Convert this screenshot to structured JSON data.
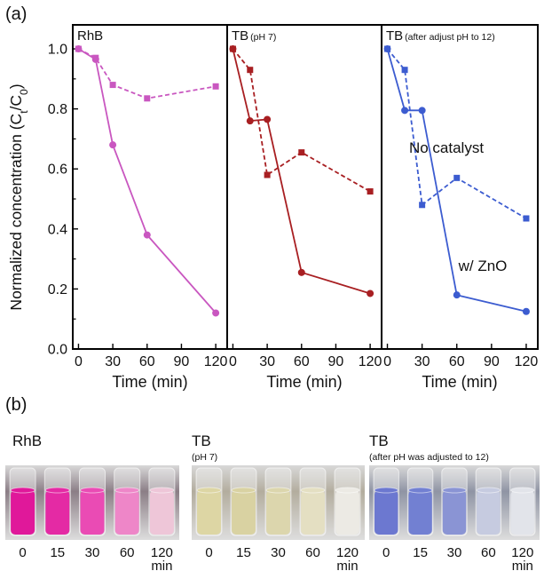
{
  "panel_a_label": "(a)",
  "panel_b_label": "(b)",
  "ylabel": "Normalized concentration (C",
  "ylabel_sub1": "t",
  "ylabel_mid": "/C",
  "ylabel_sub2": "0",
  "ylabel_end": ")",
  "xlabel": "Time (min)",
  "legend_no_catalyst": "No catalyst",
  "legend_zno": "w/ ZnO",
  "colors": {
    "rhb": "#c957c0",
    "tb7": "#a81f22",
    "tb12": "#3c5cd0",
    "photo_rhb_bg": "#8b7e86",
    "photo_tb7_bg": "#b3ad9e",
    "photo_tb12_bg": "#8f94a4"
  },
  "chart_data": [
    {
      "type": "line",
      "title": "RhB",
      "title_suffix": "",
      "x": [
        0,
        15,
        30,
        60,
        120
      ],
      "xticks": [
        "0",
        "30",
        "60",
        "90",
        "120"
      ],
      "yticks": [
        "0.0",
        "0.2",
        "0.4",
        "0.6",
        "0.8",
        "1.0"
      ],
      "xlim": [
        -5,
        130
      ],
      "ylim": [
        0,
        1.08
      ],
      "series": [
        {
          "style": "dashed-square",
          "values": [
            1.0,
            0.97,
            0.88,
            0.835,
            0.875
          ]
        },
        {
          "style": "solid-circle",
          "values": [
            1.0,
            0.965,
            0.68,
            0.38,
            0.12
          ]
        }
      ]
    },
    {
      "type": "line",
      "title": "TB",
      "title_suffix": "(pH 7)",
      "x": [
        0,
        15,
        30,
        60,
        120
      ],
      "xticks": [
        "0",
        "30",
        "60",
        "90",
        "120"
      ],
      "xlim": [
        -5,
        130
      ],
      "ylim": [
        0,
        1.08
      ],
      "series": [
        {
          "style": "dashed-square",
          "values": [
            1.0,
            0.93,
            0.58,
            0.655,
            0.525
          ]
        },
        {
          "style": "solid-circle",
          "values": [
            1.0,
            0.76,
            0.765,
            0.255,
            0.185
          ]
        }
      ]
    },
    {
      "type": "line",
      "title": "TB",
      "title_suffix": "(after adjust pH to 12)",
      "x": [
        0,
        15,
        30,
        60,
        120
      ],
      "xticks": [
        "0",
        "30",
        "60",
        "90",
        "120"
      ],
      "xlim": [
        -5,
        130
      ],
      "ylim": [
        0,
        1.08
      ],
      "series": [
        {
          "style": "dashed-square",
          "values": [
            1.0,
            0.93,
            0.48,
            0.57,
            0.435
          ]
        },
        {
          "style": "solid-circle",
          "values": [
            1.0,
            0.795,
            0.795,
            0.18,
            0.125
          ]
        }
      ]
    }
  ],
  "photos": [
    {
      "title": "RhB",
      "subtitle": "",
      "vials": [
        "#e0189a",
        "#e42aa4",
        "#ea4bb4",
        "#ee86c8",
        "#eec6d8"
      ],
      "labels": [
        "0",
        "15",
        "30",
        "60",
        "120"
      ],
      "unit": ""
    },
    {
      "title": "TB",
      "subtitle": "(pH 7)",
      "vials": [
        "#ddd6a4",
        "#d9d2a2",
        "#dcd6ad",
        "#e4dfc2",
        "#eceae4"
      ],
      "labels": [
        "0",
        "15",
        "30",
        "60",
        "120"
      ],
      "unit": "min"
    },
    {
      "title": "TB",
      "subtitle": "(after pH was adjusted to 12)",
      "vials": [
        "#6c78d0",
        "#7280d2",
        "#8a94d4",
        "#c6cbe0",
        "#e2e4ea"
      ],
      "labels": [
        "0",
        "15",
        "30",
        "60",
        "120"
      ],
      "unit": "min"
    }
  ],
  "photo_first_unit": "min"
}
